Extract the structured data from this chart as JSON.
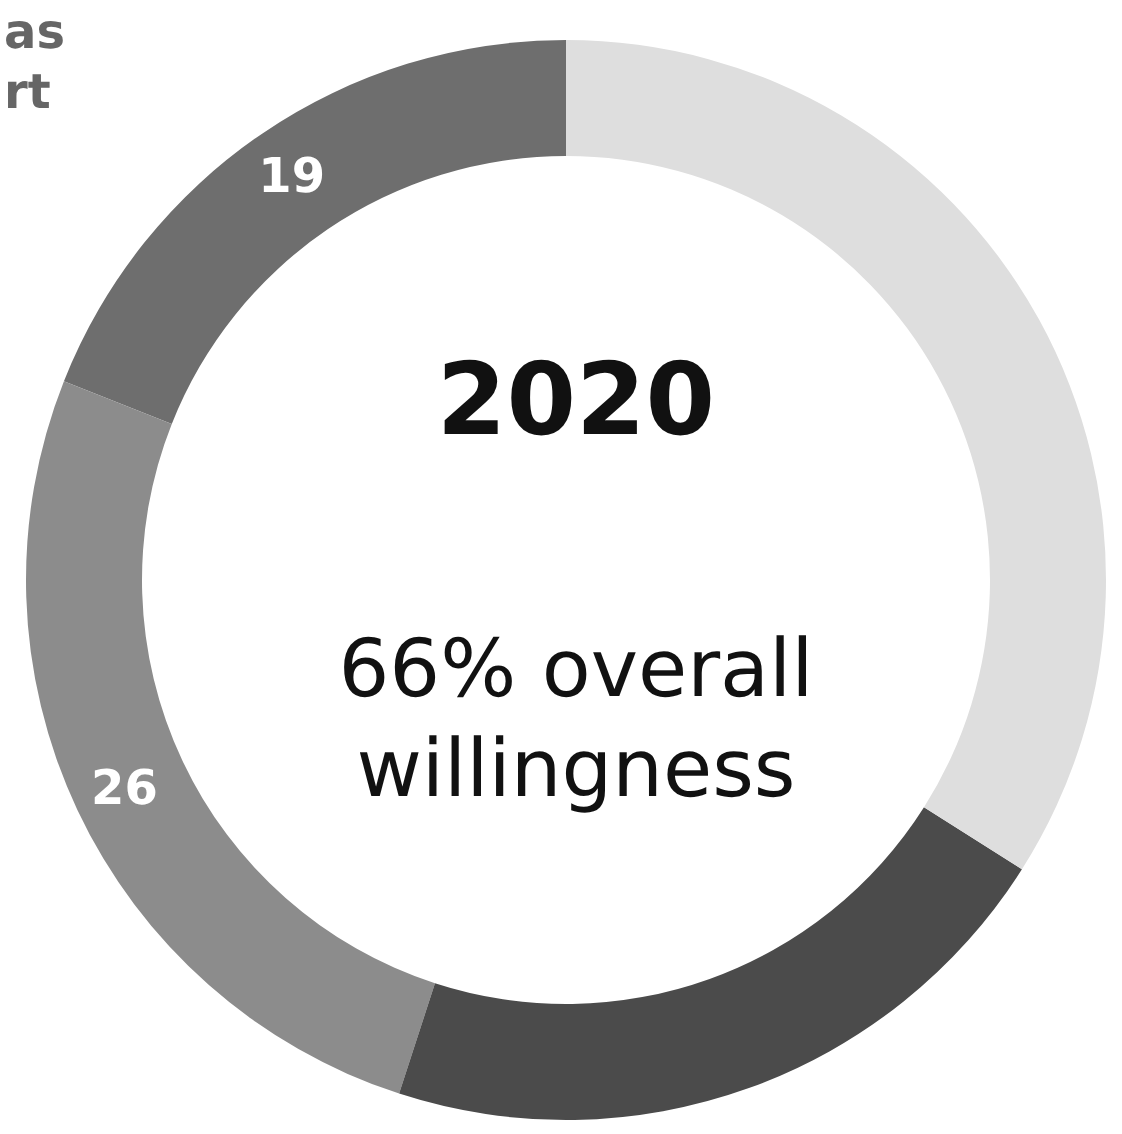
{
  "chart_data": {
    "type": "donut",
    "title": "2020",
    "subtitle": "66% overall willingness",
    "annotations": [
      "as",
      "rt"
    ],
    "categories": [
      null,
      null,
      null,
      null
    ],
    "values": [
      19,
      26,
      21,
      34
    ],
    "colors": [
      "#6e6e6e",
      "#8c8c8c",
      "#4b4b4b",
      "#dedede"
    ],
    "value_labels": [
      "19",
      "26",
      null,
      null
    ]
  }
}
